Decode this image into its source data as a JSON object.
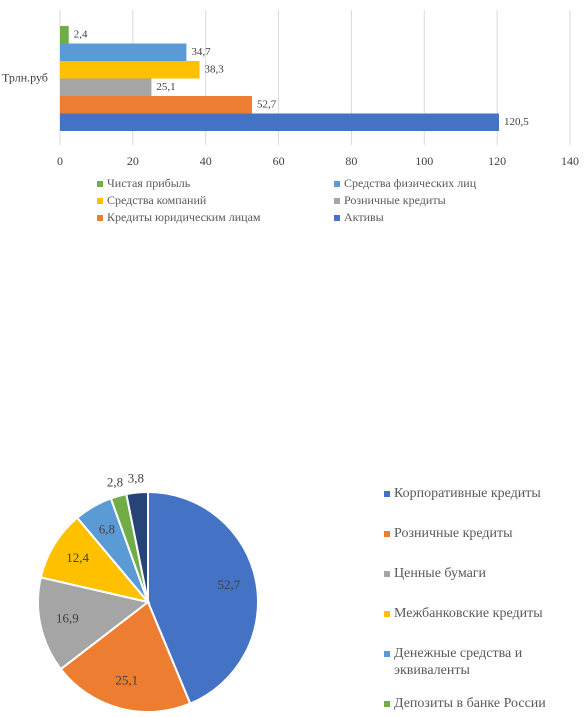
{
  "chart_data": [
    {
      "type": "bar",
      "orientation": "horizontal",
      "categories": [
        "Трлн.руб"
      ],
      "series": [
        {
          "name": "Чистая прибыль",
          "color": "#70ad47",
          "values": [
            2.4
          ],
          "value_labels": [
            "2,4"
          ]
        },
        {
          "name": "Средства физических лиц",
          "color": "#5b9bd5",
          "values": [
            34.7
          ],
          "value_labels": [
            "34,7"
          ]
        },
        {
          "name": "Средства компаний",
          "color": "#ffc000",
          "values": [
            38.3
          ],
          "value_labels": [
            "38,3"
          ]
        },
        {
          "name": "Розничные кредиты",
          "color": "#a5a5a5",
          "values": [
            25.1
          ],
          "value_labels": [
            "25,1"
          ]
        },
        {
          "name": "Кредиты юридическим лицам",
          "color": "#ed7d31",
          "values": [
            52.7
          ],
          "value_labels": [
            "52,7"
          ]
        },
        {
          "name": "Активы",
          "color": "#4472c4",
          "values": [
            120.5
          ],
          "value_labels": [
            "120,5"
          ]
        }
      ],
      "xlim": [
        0,
        140
      ],
      "xticks": [
        0,
        20,
        40,
        60,
        80,
        100,
        120,
        140
      ],
      "grid": true,
      "legend": "bottom"
    },
    {
      "type": "pie",
      "categories": [
        "Корпоративные кредиты",
        "Розничные кредиты",
        "Ценные  бумаги",
        "Межбанковские кредиты",
        "Денежные средства и эквиваленты",
        "Депозиты в банке России",
        null
      ],
      "values": [
        52.7,
        25.1,
        16.9,
        12.4,
        6.8,
        2.8,
        3.8
      ],
      "value_labels": [
        "52,7",
        "25,1",
        "16,9",
        "12,4",
        "6,8",
        "2,8",
        "3,8"
      ],
      "colors": [
        "#4472c4",
        "#ed7d31",
        "#a5a5a5",
        "#ffc000",
        "#5b9bd5",
        "#70ad47",
        "#264478"
      ],
      "legend": "right"
    }
  ]
}
